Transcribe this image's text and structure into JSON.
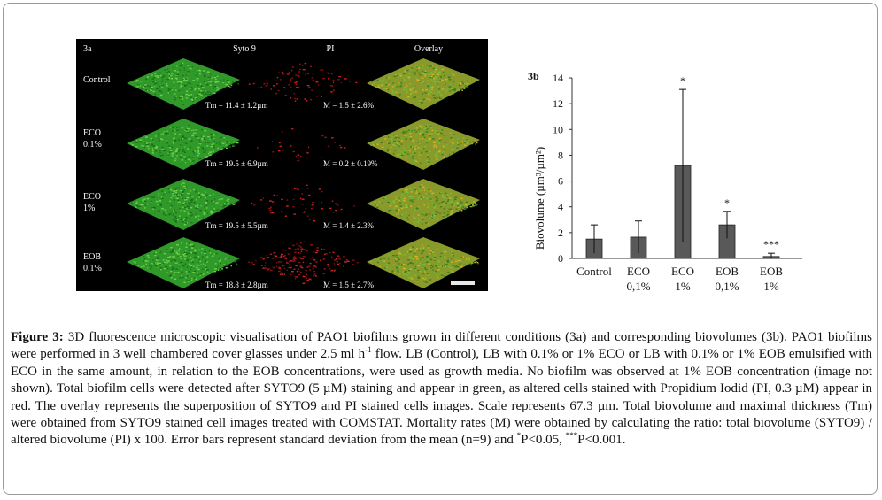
{
  "panel_a": {
    "tag": "3a",
    "columns": [
      "Syto 9",
      "PI",
      "Overlay"
    ],
    "rows": [
      {
        "label_line1": "Control",
        "label_line2": "",
        "tm": "Tm = 11.4 ± 1.2µm",
        "m": "M = 1.5 ± 2.6%"
      },
      {
        "label_line1": "ECO",
        "label_line2": "0.1%",
        "tm": "Tm = 19.5 ± 6.9µm",
        "m": "M = 0.2 ± 0.19%"
      },
      {
        "label_line1": "ECO",
        "label_line2": "1%",
        "tm": "Tm = 19.5 ± 5.5µm",
        "m": "M = 1.4 ± 2.3%"
      },
      {
        "label_line1": "EOB",
        "label_line2": "0.1%",
        "tm": "Tm = 18.8 ± 2.8µm",
        "m": "M = 1.5 ± 2.7%"
      }
    ],
    "colors": {
      "syto9": "#2f9a2a",
      "pi": "#b01818",
      "overlay": "#8a9a2a"
    }
  },
  "chart_data": {
    "type": "bar",
    "panel_label": "3b",
    "categories": [
      {
        "line1": "Control",
        "line2": ""
      },
      {
        "line1": "ECO",
        "line2": "0,1%"
      },
      {
        "line1": "ECO",
        "line2": "1%"
      },
      {
        "line1": "EOB",
        "line2": "0,1%"
      },
      {
        "line1": "EOB",
        "line2": "1%"
      }
    ],
    "values": [
      1.5,
      1.65,
      7.2,
      2.6,
      0.15
    ],
    "errors": [
      1.1,
      1.25,
      5.9,
      1.05,
      0.25
    ],
    "significance": [
      "",
      "",
      "*",
      "*",
      "***"
    ],
    "ylabel": "Biovolume (µm³/µm²)",
    "ylim": [
      0,
      14
    ],
    "yticks": [
      0,
      2,
      4,
      6,
      8,
      10,
      12,
      14
    ],
    "bar_color": "#595959",
    "grid": false
  },
  "caption": {
    "label": "Figure 3:",
    "p1": " 3D fluorescence microscopic visualisation of PAO1 biofilms grown in different conditions (3a) and corresponding biovolumes (3b). PAO1 biofilms were performed in 3 well chambered cover glasses under 2.5 ml h",
    "sup1": "-1",
    "p2": " flow. LB (Control), LB with 0.1% or 1% ECO or LB with 0.1% or 1% EOB emulsified with ECO in the same amount, in relation to the EOB concentrations, were used as growth media. No biofilm was observed at 1% EOB concentration (image not shown). Total biofilm cells were detected after SYTO9 (5 µM) staining and appear in green, as altered cells stained with Propidium Iodid (PI, 0.3 µM) appear in red. The overlay represents the superposition of SYTO9 and PI stained cells images. Scale represents 67.3 µm. Total biovolume and maximal thickness (Tm) were obtained from SYTO9 stained cell images treated with COMSTAT. Mortality rates (M) were obtained by calculating the ratio: total biovolume (SYTO9) / altered biovolume (PI) x 100. Error bars represent standard deviation from the mean (n=9) and ",
    "sup2": "*",
    "p3": "P<0.05, ",
    "sup3": "***",
    "p4": "P<0.001."
  }
}
